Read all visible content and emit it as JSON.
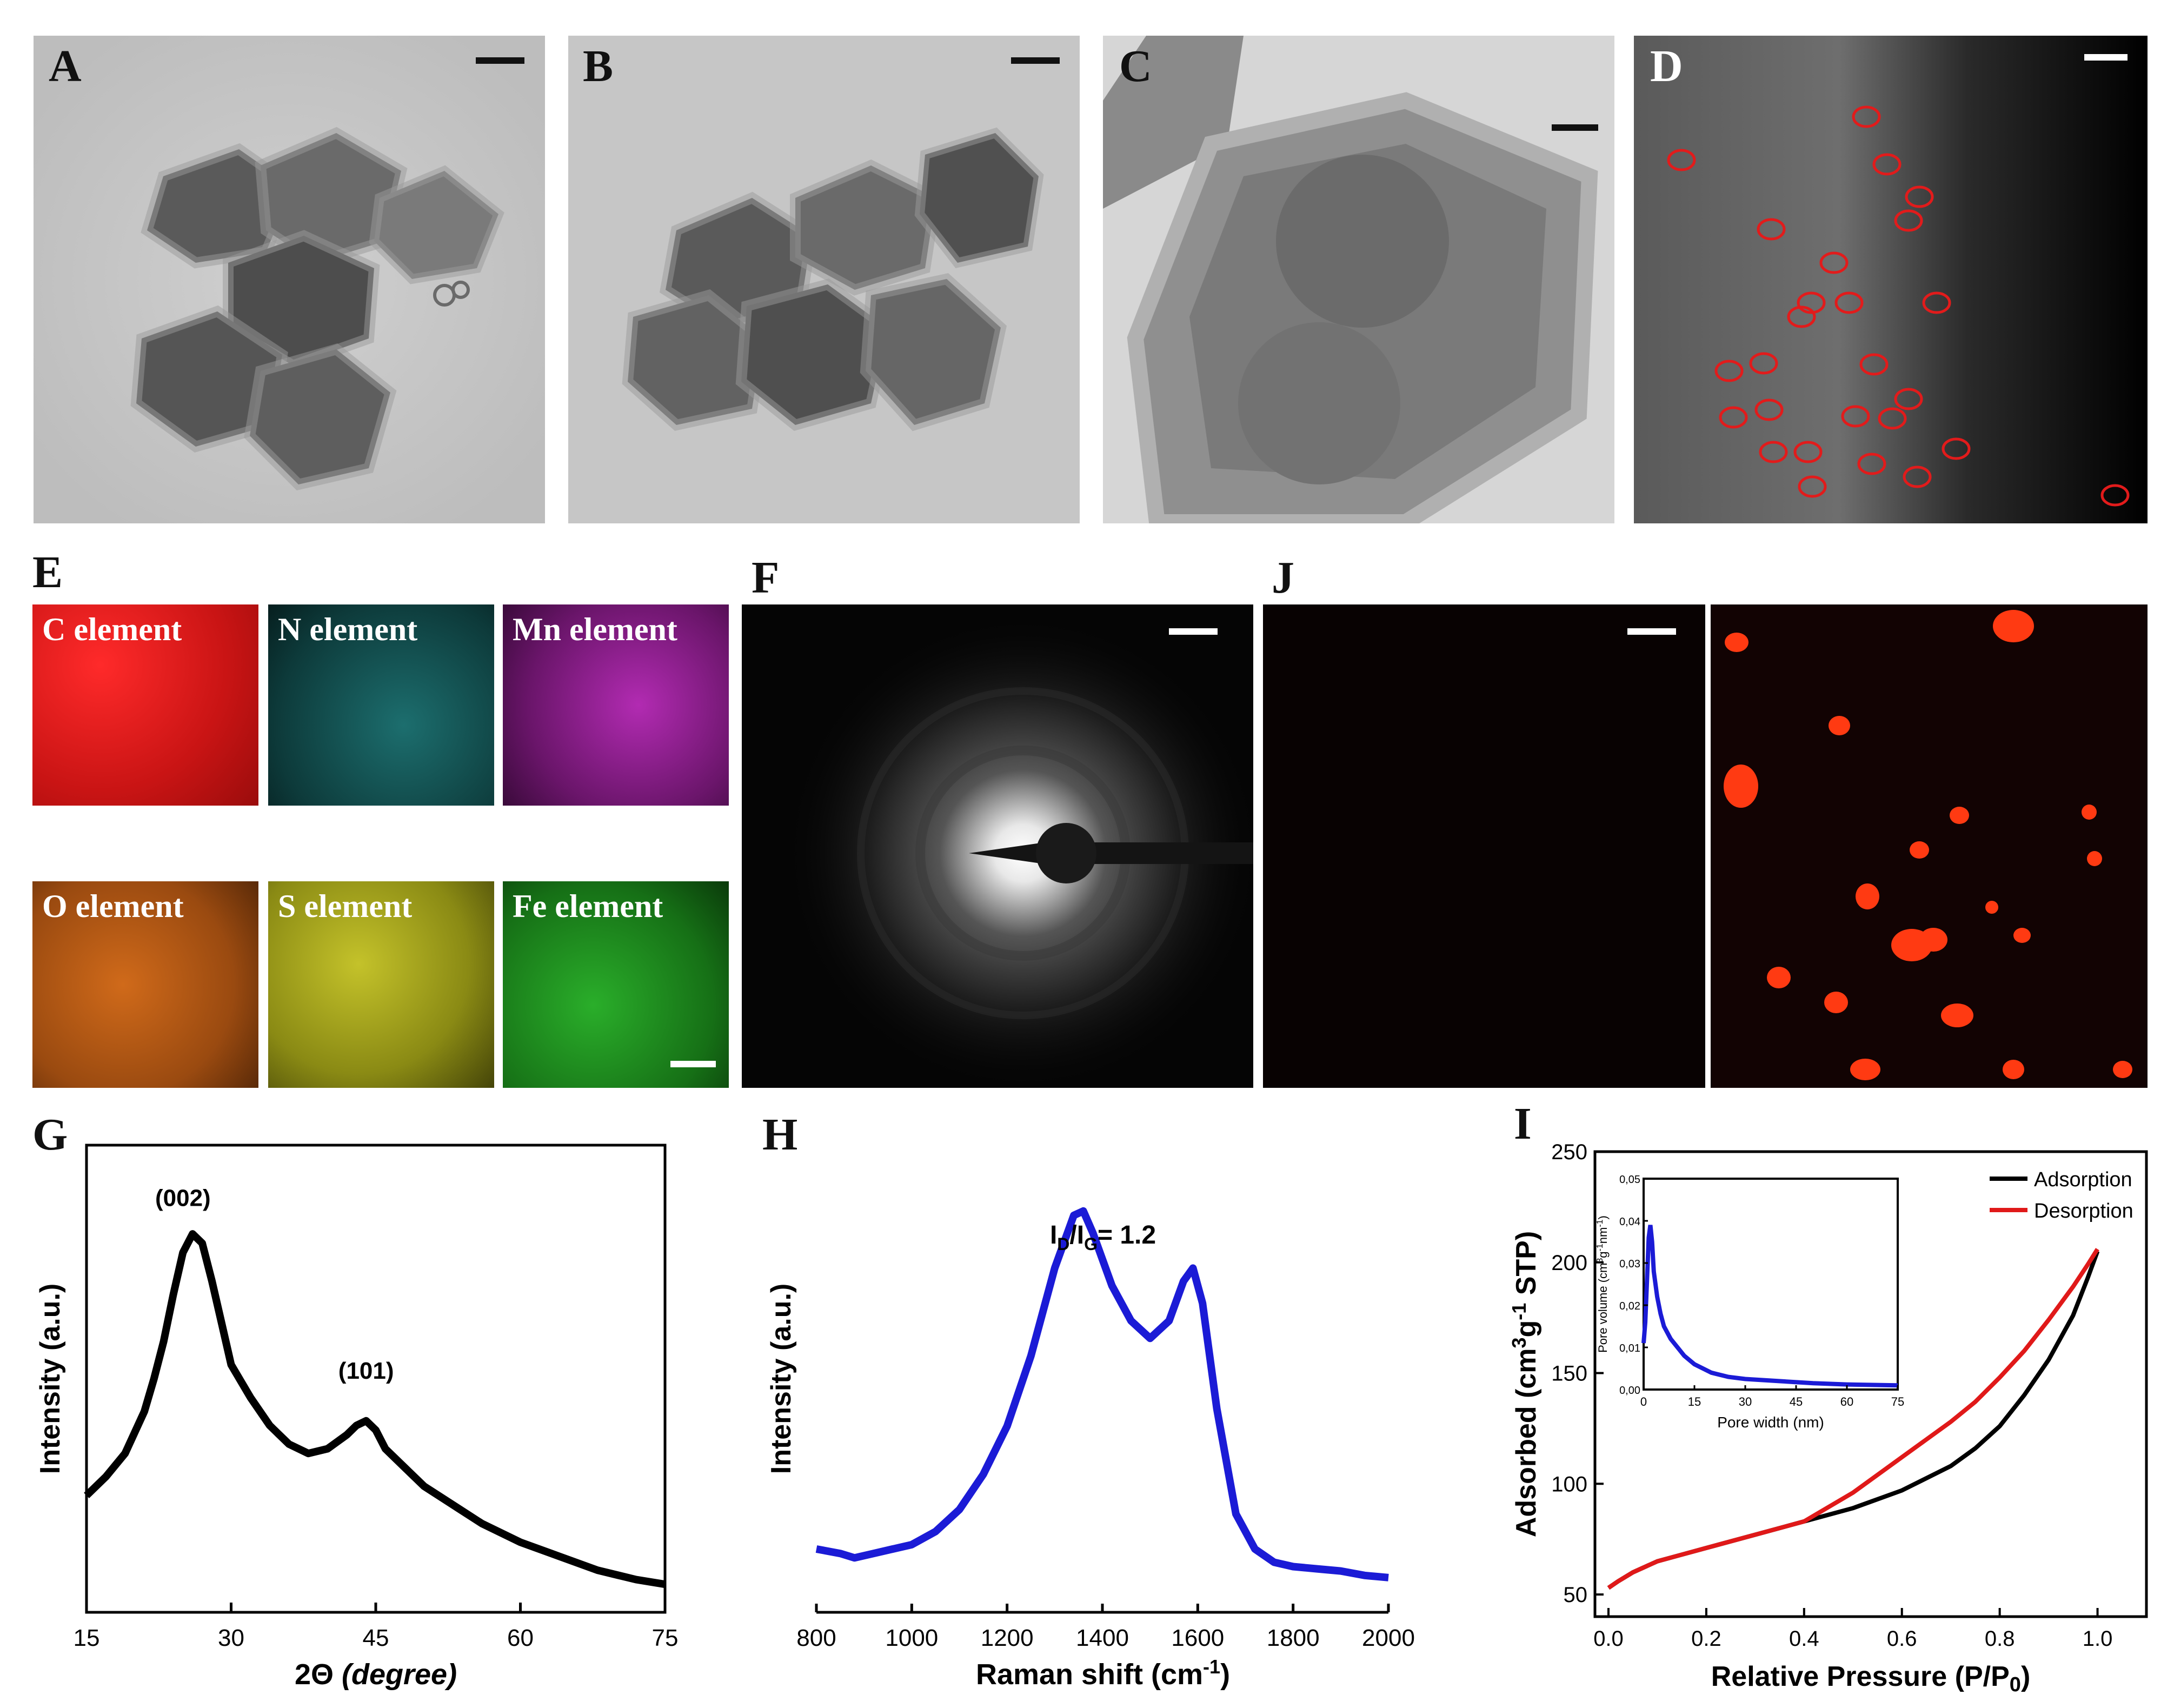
{
  "panels": {
    "A": "A",
    "B": "B",
    "C": "C",
    "D": "D",
    "E": "E",
    "F": "F",
    "J": "J",
    "G": "G",
    "H": "H",
    "I": "I"
  },
  "colors": {
    "tem_bg": "#c9c9c9",
    "map_C": "#d81818",
    "map_N": "#2aa6a6",
    "map_Mn": "#b02ab0",
    "map_O": "#cc6a1a",
    "map_S": "#b6b41e",
    "map_Fe": "#23a82a",
    "xrd_line": "#000000",
    "raman_line": "#1b1bd6",
    "adsorption": "#000000",
    "desorption": "#e01919",
    "pore": "#1b1bd6",
    "markers": "#e21b1b"
  },
  "elements": {
    "C": "C element",
    "N": "N element",
    "Mn": "Mn element",
    "O": "O element",
    "S": "S element",
    "Fe": "Fe element"
  },
  "chart_data": [
    {
      "id": "G",
      "type": "line",
      "xlabel": "2Θ (degree)",
      "ylabel": "Intensity (a.u.)",
      "xlim": [
        15,
        75
      ],
      "xticks": [
        15,
        30,
        45,
        60,
        75
      ],
      "annotations": [
        {
          "text": "(002)",
          "x": 25,
          "y": 0.87
        },
        {
          "text": "(101)",
          "x": 44,
          "y": 0.5
        }
      ],
      "x": [
        15,
        17,
        19,
        21,
        22,
        23,
        24,
        25,
        26,
        27,
        28,
        29,
        30,
        32,
        34,
        36,
        38,
        40,
        42,
        43,
        44,
        45,
        46,
        48,
        50,
        53,
        56,
        60,
        64,
        68,
        72,
        75
      ],
      "y": [
        0.25,
        0.29,
        0.34,
        0.43,
        0.5,
        0.58,
        0.68,
        0.77,
        0.81,
        0.79,
        0.71,
        0.62,
        0.53,
        0.46,
        0.4,
        0.36,
        0.34,
        0.35,
        0.38,
        0.4,
        0.41,
        0.39,
        0.35,
        0.31,
        0.27,
        0.23,
        0.19,
        0.15,
        0.12,
        0.09,
        0.07,
        0.06
      ]
    },
    {
      "id": "H",
      "type": "line",
      "xlabel": "Raman shift (cm-1)",
      "ylabel": "Intensity (a.u.)",
      "xlim": [
        800,
        2000
      ],
      "xticks": [
        800,
        1000,
        1200,
        1400,
        1600,
        1800,
        2000
      ],
      "annotation": {
        "main": "I",
        "sub1": "D",
        "mid": "/I",
        "sub2": "G",
        "tail": "= 1.2"
      },
      "x": [
        800,
        850,
        880,
        920,
        960,
        1000,
        1050,
        1100,
        1150,
        1200,
        1250,
        1300,
        1340,
        1360,
        1380,
        1420,
        1460,
        1500,
        1540,
        1570,
        1590,
        1610,
        1640,
        1680,
        1720,
        1760,
        1800,
        1850,
        1900,
        1950,
        2000
      ],
      "y": [
        0.08,
        0.07,
        0.06,
        0.07,
        0.08,
        0.09,
        0.12,
        0.17,
        0.25,
        0.36,
        0.52,
        0.72,
        0.84,
        0.85,
        0.8,
        0.68,
        0.6,
        0.56,
        0.6,
        0.69,
        0.72,
        0.64,
        0.4,
        0.16,
        0.08,
        0.05,
        0.04,
        0.035,
        0.03,
        0.02,
        0.015
      ]
    },
    {
      "id": "I",
      "type": "line",
      "xlabel": "Relative Pressure (P/P0)",
      "ylabel": "Adsorbed (cm3g-1 STP)",
      "xlim": [
        0.0,
        1.0
      ],
      "ylim": [
        40,
        250
      ],
      "xticks": [
        "0.0",
        "0.2",
        "0.4",
        "0.6",
        "0.8",
        "1.0"
      ],
      "yticks": [
        "50",
        "100",
        "150",
        "200",
        "250"
      ],
      "series": [
        {
          "name": "Adsorption",
          "x": [
            0.0,
            0.02,
            0.05,
            0.1,
            0.15,
            0.2,
            0.3,
            0.4,
            0.5,
            0.6,
            0.7,
            0.75,
            0.8,
            0.85,
            0.9,
            0.95,
            0.98,
            1.0
          ],
          "y": [
            53,
            56,
            60,
            65,
            68,
            71,
            77,
            83,
            89,
            97,
            108,
            116,
            126,
            140,
            156,
            176,
            193,
            205
          ]
        },
        {
          "name": "Desorption",
          "x": [
            0.0,
            0.02,
            0.05,
            0.1,
            0.15,
            0.2,
            0.3,
            0.4,
            0.5,
            0.6,
            0.7,
            0.75,
            0.8,
            0.85,
            0.9,
            0.95,
            0.98,
            1.0
          ],
          "y": [
            53,
            56,
            60,
            65,
            68,
            71,
            77,
            83,
            96,
            112,
            128,
            137,
            148,
            160,
            174,
            189,
            199,
            206
          ]
        }
      ],
      "inset": {
        "xlabel": "Pore width (nm)",
        "ylabel": "Pore volume (cm3g-1nm-1)",
        "xlim": [
          0,
          75
        ],
        "ylim": [
          0,
          0.05
        ],
        "xticks": [
          "0",
          "15",
          "30",
          "45",
          "60",
          "75"
        ],
        "yticks": [
          "0,00",
          "0,01",
          "0,02",
          "0,03",
          "0,04",
          "0,05"
        ],
        "x": [
          0,
          0.5,
          1,
          1.5,
          2,
          2.5,
          3,
          4,
          5,
          6,
          8,
          10,
          12,
          15,
          20,
          25,
          30,
          40,
          50,
          60,
          75
        ],
        "y": [
          0.011,
          0.016,
          0.026,
          0.036,
          0.039,
          0.035,
          0.028,
          0.022,
          0.018,
          0.015,
          0.012,
          0.01,
          0.008,
          0.006,
          0.004,
          0.003,
          0.0025,
          0.002,
          0.0015,
          0.0012,
          0.001
        ]
      }
    }
  ]
}
